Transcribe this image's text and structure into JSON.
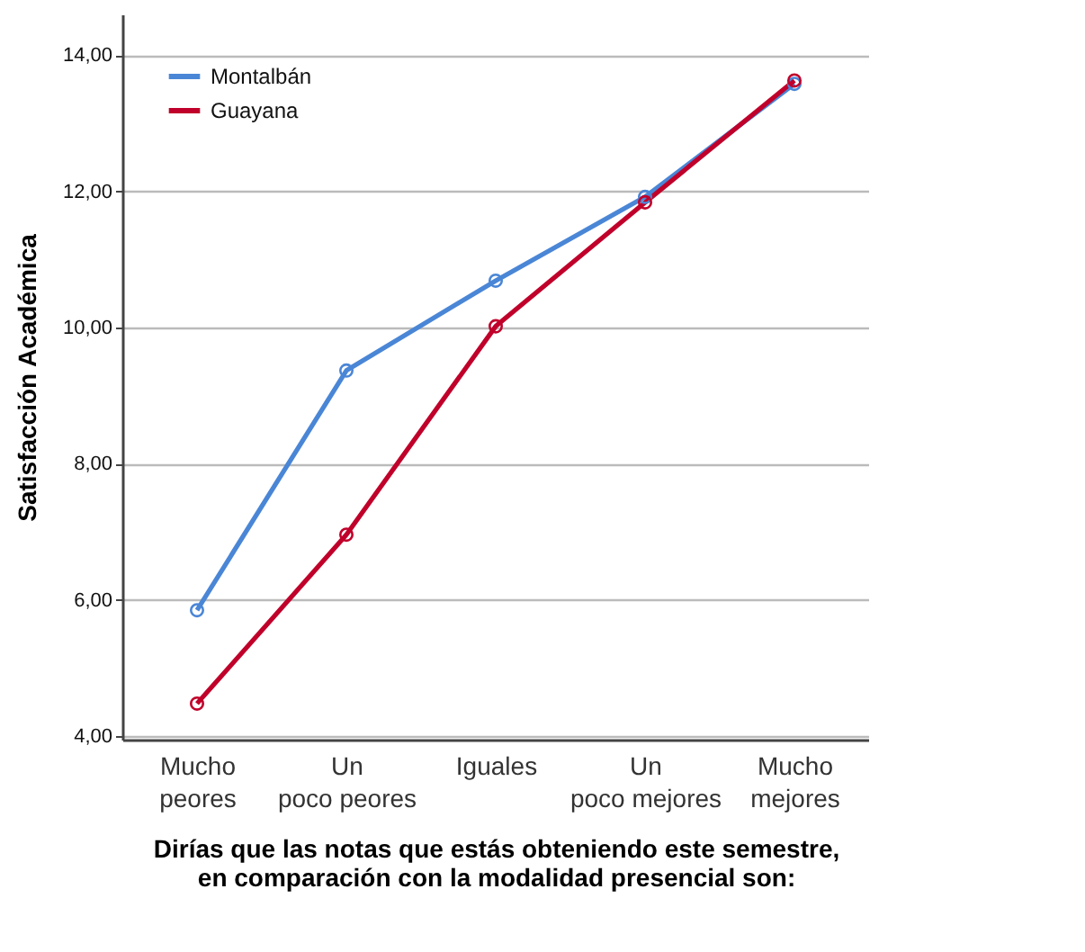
{
  "chart_data": {
    "type": "line",
    "xlabel": "Dirías que las notas que estás obteniendo este semestre, en comparación con la modalidad presencial son:",
    "ylabel": "Satisfacción Académica",
    "categories": [
      "Mucho peores",
      "Un poco peores",
      "Iguales",
      "Un poco mejores",
      "Mucho mejores"
    ],
    "series": [
      {
        "name": "Montalbán",
        "color": "#4a86d6",
        "values": [
          5.85,
          9.37,
          10.69,
          11.92,
          13.58
        ]
      },
      {
        "name": "Guayana",
        "color": "#c0002a",
        "values": [
          4.48,
          6.96,
          10.02,
          11.84,
          13.63
        ]
      }
    ],
    "ylim": [
      3.95,
      14.6
    ],
    "yticks": [
      {
        "value": 4,
        "label": "4,00"
      },
      {
        "value": 6,
        "label": "6,00"
      },
      {
        "value": 8,
        "label": "8,00"
      },
      {
        "value": 10,
        "label": "10,00"
      },
      {
        "value": 12,
        "label": "12,00"
      },
      {
        "value": 14,
        "label": "14,00"
      }
    ],
    "grid": "y",
    "legend": "top left",
    "marker": "circle",
    "line_style": "solid"
  }
}
